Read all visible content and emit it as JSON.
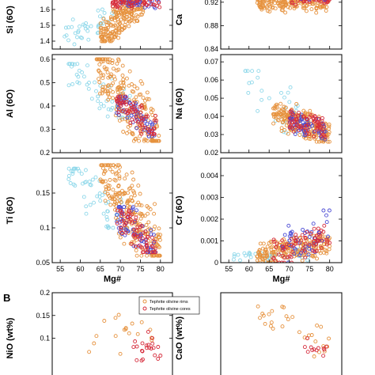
{
  "panel_letter": "B",
  "colors": {
    "light_blue": "#8fd8ea",
    "orange": "#e6923e",
    "blue": "#4b4bd4",
    "red": "#d62c3c",
    "frame": "#000000"
  },
  "legend": {
    "rims": "Tephrite olivine rims",
    "cores": "Tephrite olivine cores"
  },
  "chart_data": [
    {
      "id": "si",
      "type": "scatter",
      "ylabel": "Si (6O)",
      "xlabel": "",
      "ylim": [
        1.35,
        1.72
      ],
      "yticks": [
        "1.6",
        "1.5",
        "1.4"
      ],
      "ytick_values": [
        1.6,
        1.5,
        1.4
      ],
      "xlim": [
        53,
        83
      ],
      "xticks": [],
      "grid": false,
      "series": [
        {
          "color": "light_blue",
          "n": 40,
          "x": [
            56,
            69
          ],
          "y": [
            1.38,
            1.6
          ],
          "trend": 0.012
        },
        {
          "color": "orange",
          "n": 220,
          "x": [
            65,
            76
          ],
          "y": [
            1.4,
            1.7
          ],
          "trend": 0.024
        },
        {
          "color": "blue",
          "n": 50,
          "x": [
            70,
            80
          ],
          "y": [
            1.6,
            1.7
          ],
          "trend": 0.0
        },
        {
          "color": "red",
          "n": 70,
          "x": [
            68,
            80
          ],
          "y": [
            1.6,
            1.7
          ],
          "trend": 0.0
        }
      ]
    },
    {
      "id": "ca",
      "type": "scatter",
      "ylabel": "Ca",
      "xlabel": "",
      "ylim": [
        0.84,
        0.94
      ],
      "yticks": [
        "0.92",
        "0.88",
        "0.84"
      ],
      "ytick_values": [
        0.92,
        0.88,
        0.84
      ],
      "xlim": [
        53,
        83
      ],
      "xticks": [],
      "grid": false,
      "series": [
        {
          "color": "orange",
          "n": 200,
          "x": [
            62,
            80
          ],
          "y": [
            0.9,
            0.94
          ],
          "trend": 0.0
        },
        {
          "color": "red",
          "n": 70,
          "x": [
            70,
            80
          ],
          "y": [
            0.915,
            0.94
          ],
          "trend": 0.0
        },
        {
          "color": "blue",
          "n": 20,
          "x": [
            70,
            79
          ],
          "y": [
            0.92,
            0.94
          ],
          "trend": 0.0
        }
      ]
    },
    {
      "id": "al",
      "type": "scatter",
      "ylabel": "Al (6O)",
      "xlabel": "",
      "ylim": [
        0.2,
        0.62
      ],
      "yticks": [
        "0.6",
        "0.5",
        "0.4",
        "0.3",
        "0.2"
      ],
      "ytick_values": [
        0.6,
        0.5,
        0.4,
        0.3,
        0.2
      ],
      "xlim": [
        53,
        83
      ],
      "xticks": [],
      "grid": false,
      "series": [
        {
          "color": "light_blue",
          "n": 60,
          "x": [
            57,
            73
          ],
          "y": [
            0.35,
            0.58
          ],
          "trend": -0.014
        },
        {
          "color": "orange",
          "n": 230,
          "x": [
            64,
            80
          ],
          "y": [
            0.25,
            0.6
          ],
          "trend": -0.021
        },
        {
          "color": "blue",
          "n": 60,
          "x": [
            69,
            79
          ],
          "y": [
            0.27,
            0.44
          ],
          "trend": -0.015
        },
        {
          "color": "red",
          "n": 70,
          "x": [
            69,
            79
          ],
          "y": [
            0.28,
            0.44
          ],
          "trend": -0.015
        }
      ]
    },
    {
      "id": "na",
      "type": "scatter",
      "ylabel": "Na (6O)",
      "xlabel": "",
      "ylim": [
        0.02,
        0.074
      ],
      "yticks": [
        "0.07",
        "0.06",
        "0.05",
        "0.04",
        "0.03",
        "0.02"
      ],
      "ytick_values": [
        0.07,
        0.06,
        0.05,
        0.04,
        0.03,
        0.02
      ],
      "xlim": [
        53,
        83
      ],
      "xticks": [],
      "grid": false,
      "series": [
        {
          "color": "light_blue",
          "n": 40,
          "x": [
            59,
            74
          ],
          "y": [
            0.03,
            0.065
          ],
          "trend": -0.0018
        },
        {
          "color": "orange",
          "n": 220,
          "x": [
            66,
            80
          ],
          "y": [
            0.026,
            0.047
          ],
          "trend": -0.0008
        },
        {
          "color": "blue",
          "n": 60,
          "x": [
            70,
            79
          ],
          "y": [
            0.027,
            0.043
          ],
          "trend": -0.0006
        },
        {
          "color": "red",
          "n": 70,
          "x": [
            70,
            79
          ],
          "y": [
            0.028,
            0.044
          ],
          "trend": -0.0006
        }
      ]
    },
    {
      "id": "ti",
      "type": "scatter",
      "ylabel": "Ti (6O)",
      "xlabel": "Mg#",
      "ylim": [
        0.05,
        0.2
      ],
      "yticks": [
        "0.15",
        "0.1",
        "0.05"
      ],
      "ytick_values": [
        0.15,
        0.1,
        0.05
      ],
      "xlim": [
        53,
        83
      ],
      "xticks": [
        "55",
        "60",
        "65",
        "70",
        "75",
        "80"
      ],
      "xtick_values": [
        55,
        60,
        65,
        70,
        75,
        80
      ],
      "grid": false,
      "series": [
        {
          "color": "light_blue",
          "n": 60,
          "x": [
            57,
            72
          ],
          "y": [
            0.1,
            0.185
          ],
          "trend": -0.006
        },
        {
          "color": "orange",
          "n": 230,
          "x": [
            65,
            80
          ],
          "y": [
            0.06,
            0.19
          ],
          "trend": -0.0085
        },
        {
          "color": "blue",
          "n": 60,
          "x": [
            69,
            79
          ],
          "y": [
            0.065,
            0.13
          ],
          "trend": -0.006
        },
        {
          "color": "red",
          "n": 70,
          "x": [
            69,
            79
          ],
          "y": [
            0.065,
            0.125
          ],
          "trend": -0.006
        }
      ]
    },
    {
      "id": "cr",
      "type": "scatter",
      "ylabel": "Cr (6O)",
      "xlabel": "Mg#",
      "ylim": [
        0,
        0.0048
      ],
      "yticks": [
        "0.004",
        "0.003",
        "0.002",
        "0.001",
        "0"
      ],
      "ytick_values": [
        0.004,
        0.003,
        0.002,
        0.001,
        0
      ],
      "xlim": [
        53,
        83
      ],
      "xticks": [
        "55",
        "60",
        "65",
        "70",
        "75",
        "80"
      ],
      "xtick_values": [
        55,
        60,
        65,
        70,
        75,
        80
      ],
      "grid": false,
      "series": [
        {
          "color": "light_blue",
          "n": 40,
          "x": [
            56,
            75
          ],
          "y": [
            0,
            0.0007
          ],
          "trend": 0.0
        },
        {
          "color": "orange",
          "n": 200,
          "x": [
            62,
            80
          ],
          "y": [
            0,
            0.0013
          ],
          "trend": 3e-05
        },
        {
          "color": "blue",
          "n": 50,
          "x": [
            68,
            80
          ],
          "y": [
            0,
            0.0024
          ],
          "trend": 0.0001
        },
        {
          "color": "red",
          "n": 70,
          "x": [
            66,
            80
          ],
          "y": [
            0,
            0.0017
          ],
          "trend": 6e-05
        }
      ]
    },
    {
      "id": "nio",
      "type": "scatter",
      "ylabel": "NiO (wt%)",
      "xlabel": "",
      "ylim": [
        0,
        0.2
      ],
      "yticks": [
        "0.2",
        "0.15",
        "0.1"
      ],
      "ytick_values": [
        0.2,
        0.15,
        0.1
      ],
      "xlim": [
        53,
        83
      ],
      "xticks": [],
      "grid": false,
      "series": [
        {
          "color": "orange",
          "n": 18,
          "x": [
            62,
            78
          ],
          "y": [
            0.04,
            0.17
          ],
          "trend": 0.0
        },
        {
          "color": "red",
          "n": 22,
          "x": [
            73,
            80
          ],
          "y": [
            0.04,
            0.13
          ],
          "trend": 0.0
        }
      ]
    },
    {
      "id": "cao",
      "type": "scatter",
      "ylabel": "CaO (wt%)",
      "xlabel": "",
      "ylim": [
        0,
        1.0
      ],
      "yticks": [],
      "ytick_values": [],
      "xlim": [
        53,
        83
      ],
      "xticks": [],
      "grid": false,
      "series": [
        {
          "color": "orange",
          "n": 30,
          "x": [
            62,
            80
          ],
          "y": [
            0.3,
            0.85
          ],
          "trend": -0.02
        },
        {
          "color": "red",
          "n": 12,
          "x": [
            73,
            80
          ],
          "y": [
            0.3,
            0.5
          ],
          "trend": 0.0
        }
      ]
    }
  ]
}
